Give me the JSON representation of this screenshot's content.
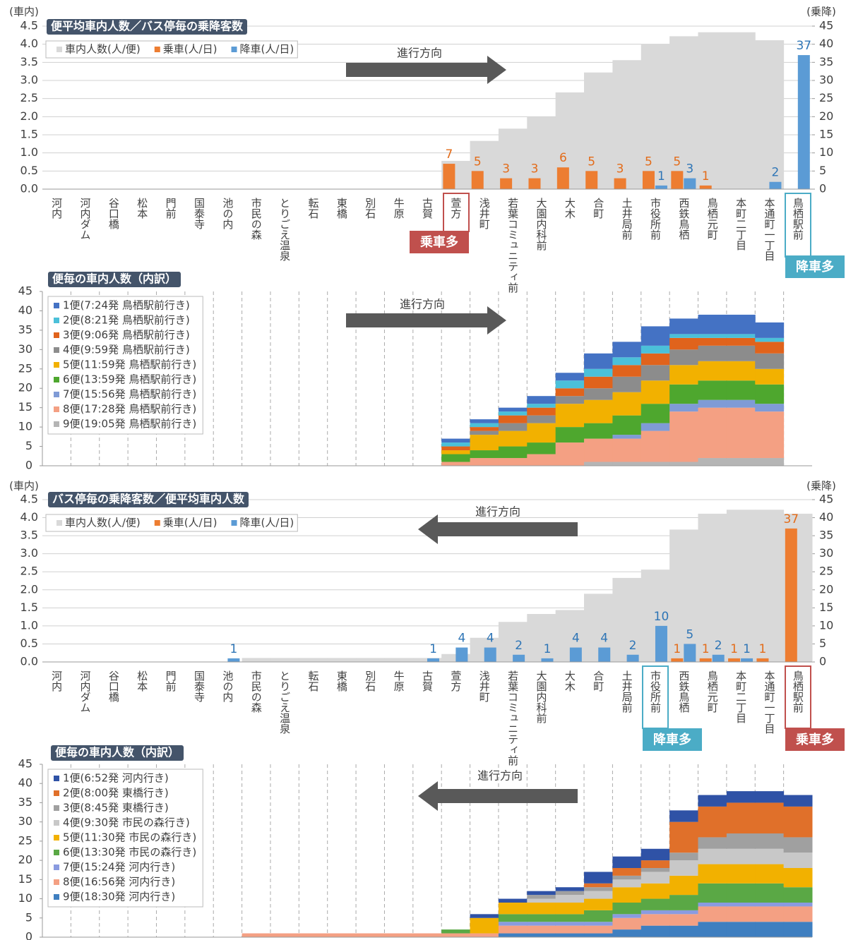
{
  "chart_data": [
    {
      "type": "combo",
      "title": "便平均車内人数／バス停毎の乗降客数",
      "y_label": "(車内)",
      "y2_label": "(乗降)",
      "direction_label": "進行方向",
      "annotations": [
        "乗車多",
        "降車多"
      ],
      "categories": [
        "河内",
        "河内ダム",
        "谷口橋",
        "松本",
        "門前",
        "国泰寺",
        "池の内",
        "市民の森",
        "とりごえ温泉",
        "転石",
        "東橋",
        "別石",
        "牛原",
        "古賀",
        "萱方",
        "浅井町",
        "若葉コミュニティ前",
        "大園内科前",
        "大木",
        "合町",
        "土井局前",
        "市役所前",
        "西鉄鳥栖",
        "鳥栖元町",
        "本町二丁目",
        "本通町一丁目",
        "鳥栖駅前"
      ],
      "ylim": [
        0,
        4.5
      ],
      "yticks": [
        {
          "value": 0,
          "label": "0.0"
        },
        0.5,
        {
          "value": 1,
          "label": "1.0"
        },
        1.5,
        {
          "value": 2,
          "label": "2.0"
        },
        2.5,
        {
          "value": 3,
          "label": "3.0"
        },
        3.5,
        {
          "value": 4,
          "label": "4.0"
        },
        4.5
      ],
      "y2lim": [
        0,
        45
      ],
      "y2ticks": [
        0,
        5,
        10,
        15,
        20,
        25,
        30,
        35,
        40,
        45
      ],
      "grid": true,
      "series": [
        {
          "name": "車内人数(人/便)",
          "color": "#d9d9d9",
          "values": [
            0,
            0,
            0,
            0,
            0,
            0,
            0,
            0,
            0,
            0,
            0,
            0,
            0,
            0,
            0.78,
            1.33,
            1.67,
            2.0,
            2.67,
            3.22,
            3.56,
            4.0,
            4.22,
            4.33,
            4.33,
            4.11,
            0
          ]
        },
        {
          "name": "乗車(人/日)",
          "color": "#ed7d31",
          "axis": "y2",
          "values": [
            null,
            null,
            null,
            null,
            null,
            null,
            null,
            null,
            null,
            null,
            null,
            null,
            null,
            null,
            7,
            5,
            3,
            3,
            6,
            5,
            3,
            5,
            5,
            1,
            null,
            null,
            null
          ]
        },
        {
          "name": "降車(人/日)",
          "color": "#5b9bd5",
          "axis": "y2",
          "values": [
            null,
            null,
            null,
            null,
            null,
            null,
            null,
            null,
            null,
            null,
            null,
            null,
            null,
            null,
            null,
            null,
            null,
            null,
            null,
            null,
            null,
            1,
            3,
            null,
            null,
            2,
            37
          ]
        }
      ]
    },
    {
      "type": "stacked_area",
      "title": "便毎の車内人数（内訳）",
      "direction_label": "進行方向",
      "ylim": [
        0,
        45
      ],
      "yticks": [
        0,
        5,
        10,
        15,
        20,
        25,
        30,
        35,
        40,
        45
      ],
      "series": [
        {
          "name": "1便(7:24発 鳥栖駅前行き)",
          "color": "#4472c4",
          "values": [
            0,
            0,
            0,
            0,
            0,
            0,
            0,
            0,
            0,
            0,
            0,
            0,
            0,
            0,
            1,
            1,
            1,
            2,
            2,
            4,
            4,
            5,
            4,
            5,
            5,
            4,
            0
          ]
        },
        {
          "name": "2便(8:21発 鳥栖駅前行き)",
          "color": "#4bc0d9",
          "values": [
            0,
            0,
            0,
            0,
            0,
            0,
            0,
            0,
            0,
            0,
            0,
            0,
            0,
            0,
            1,
            1,
            1,
            1,
            2,
            2,
            2,
            2,
            1,
            1,
            1,
            1,
            0
          ]
        },
        {
          "name": "3便(9:06発 鳥栖駅前行き)",
          "color": "#e0631c",
          "values": [
            0,
            0,
            0,
            0,
            0,
            0,
            0,
            0,
            0,
            0,
            0,
            0,
            0,
            0,
            1,
            1,
            2,
            2,
            2,
            3,
            3,
            3,
            3,
            2,
            2,
            3,
            0
          ]
        },
        {
          "name": "4便(9:59発 鳥栖駅前行き)",
          "color": "#8c8c8c",
          "values": [
            0,
            0,
            0,
            0,
            0,
            0,
            0,
            0,
            0,
            0,
            0,
            0,
            0,
            0,
            0,
            1,
            2,
            2,
            2,
            3,
            4,
            4,
            4,
            4,
            4,
            4,
            0
          ]
        },
        {
          "name": "5便(11:59発 鳥栖駅前行き)",
          "color": "#f2b100",
          "values": [
            0,
            0,
            0,
            0,
            0,
            0,
            0,
            0,
            0,
            0,
            0,
            0,
            0,
            0,
            1,
            4,
            4,
            5,
            6,
            6,
            6,
            6,
            5,
            5,
            5,
            4,
            0
          ]
        },
        {
          "name": "6便(13:59発 鳥栖駅前行き)",
          "color": "#4ea72e",
          "values": [
            0,
            0,
            0,
            0,
            0,
            0,
            0,
            0,
            0,
            0,
            0,
            0,
            0,
            0,
            2,
            2,
            3,
            3,
            4,
            4,
            5,
            5,
            5,
            5,
            5,
            5,
            0
          ]
        },
        {
          "name": "7便(15:56発 鳥栖駅前行き)",
          "color": "#7f9bd6",
          "values": [
            0,
            0,
            0,
            0,
            0,
            0,
            0,
            0,
            0,
            0,
            0,
            0,
            0,
            0,
            0,
            0,
            0,
            0,
            0,
            0,
            1,
            2,
            2,
            2,
            2,
            2,
            0
          ]
        },
        {
          "name": "8便(17:28発 鳥栖駅前行き)",
          "color": "#f4a083",
          "values": [
            0,
            0,
            0,
            0,
            0,
            0,
            0,
            0,
            0,
            0,
            0,
            0,
            0,
            0,
            1,
            2,
            2,
            3,
            6,
            6,
            6,
            8,
            13,
            13,
            13,
            12,
            0
          ]
        },
        {
          "name": "9便(19:05発 鳥栖駅前行き)",
          "color": "#b5b5b5",
          "values": [
            0,
            0,
            0,
            0,
            0,
            0,
            0,
            0,
            0,
            0,
            0,
            0,
            0,
            0,
            0,
            0,
            0,
            0,
            0,
            1,
            1,
            1,
            1,
            2,
            2,
            2,
            0
          ]
        }
      ]
    },
    {
      "type": "combo",
      "title": "バス停毎の乗降客数／便平均車内人数",
      "y_label": "(車内)",
      "y2_label": "(乗降)",
      "direction_label": "進行方向",
      "annotations": [
        "降車多",
        "乗車多"
      ],
      "categories": [
        "河内",
        "河内ダム",
        "谷口橋",
        "松本",
        "門前",
        "国泰寺",
        "池の内",
        "市民の森",
        "とりごえ温泉",
        "転石",
        "東橋",
        "別石",
        "牛原",
        "古賀",
        "萱方",
        "浅井町",
        "若葉コミュニティ前",
        "大園内科前",
        "大木",
        "合町",
        "土井局前",
        "市役所前",
        "西鉄鳥栖",
        "鳥栖元町",
        "本町二丁目",
        "本通町一丁目",
        "鳥栖駅前"
      ],
      "ylim": [
        0,
        4.5
      ],
      "yticks": [
        {
          "value": 0,
          "label": "0.0"
        },
        0.5,
        {
          "value": 1,
          "label": "1.0"
        },
        1.5,
        {
          "value": 2,
          "label": "2.0"
        },
        2.5,
        {
          "value": 3,
          "label": "3.0"
        },
        3.5,
        {
          "value": 4,
          "label": "4.0"
        },
        4.5
      ],
      "y2lim": [
        0,
        45
      ],
      "y2ticks": [
        0,
        5,
        10,
        15,
        20,
        25,
        30,
        35,
        40,
        45
      ],
      "grid": true,
      "series": [
        {
          "name": "車内人数(人/便)",
          "color": "#d9d9d9",
          "values": [
            0,
            0,
            0,
            0,
            0,
            0,
            0,
            0.11,
            0.11,
            0.11,
            0.11,
            0.11,
            0.11,
            0.11,
            0.22,
            0.67,
            1.11,
            1.33,
            1.44,
            1.89,
            2.33,
            2.56,
            3.67,
            4.11,
            4.22,
            4.22,
            4.11
          ]
        },
        {
          "name": "乗車(人/日)",
          "color": "#ed7d31",
          "axis": "y2",
          "values": [
            null,
            null,
            null,
            null,
            null,
            null,
            null,
            null,
            null,
            null,
            null,
            null,
            null,
            null,
            null,
            null,
            null,
            null,
            null,
            null,
            null,
            null,
            1,
            1,
            1,
            1,
            37
          ]
        },
        {
          "name": "降車(人/日)",
          "color": "#5b9bd5",
          "axis": "y2",
          "values": [
            null,
            null,
            null,
            null,
            null,
            null,
            1,
            null,
            null,
            null,
            null,
            null,
            null,
            1,
            4,
            4,
            2,
            1,
            4,
            4,
            2,
            10,
            5,
            2,
            1,
            null,
            null
          ]
        }
      ]
    },
    {
      "type": "stacked_area",
      "title": "便毎の車内人数（内訳）",
      "direction_label": "進行方向",
      "ylim": [
        0,
        45
      ],
      "yticks": [
        0,
        5,
        10,
        15,
        20,
        25,
        30,
        35,
        40,
        45
      ],
      "series": [
        {
          "name": "1便(6:52発 河内行き)",
          "color": "#2f52a6",
          "values": [
            0,
            0,
            0,
            0,
            0,
            0,
            0,
            0,
            0,
            0,
            0,
            0,
            0,
            0,
            0,
            1,
            1,
            1,
            1,
            3,
            3,
            3,
            3,
            3,
            3,
            3,
            3
          ]
        },
        {
          "name": "2便(8:00発 東橋行き)",
          "color": "#e0702a",
          "values": [
            0,
            0,
            0,
            0,
            0,
            0,
            0,
            0,
            0,
            0,
            0,
            0,
            0,
            0,
            0,
            0,
            0,
            0,
            0,
            1,
            2,
            2,
            8,
            8,
            8,
            8,
            8
          ]
        },
        {
          "name": "3便(8:45発 東橋行き)",
          "color": "#a0a0a0",
          "values": [
            0,
            0,
            0,
            0,
            0,
            0,
            0,
            0,
            0,
            0,
            0,
            0,
            0,
            0,
            0,
            0,
            0,
            1,
            1,
            1,
            1,
            1,
            2,
            3,
            4,
            4,
            4
          ]
        },
        {
          "name": "4便(9:30発 市民の森行き)",
          "color": "#c8c8c8",
          "values": [
            0,
            0,
            0,
            0,
            0,
            0,
            0,
            0,
            0,
            0,
            0,
            0,
            0,
            0,
            0,
            0,
            0,
            1,
            2,
            2,
            2,
            3,
            4,
            4,
            4,
            4,
            4
          ]
        },
        {
          "name": "5便(11:30発 市民の森行き)",
          "color": "#f2b100",
          "values": [
            0,
            0,
            0,
            0,
            0,
            0,
            0,
            0,
            0,
            0,
            0,
            0,
            0,
            0,
            0,
            4,
            3,
            3,
            3,
            3,
            4,
            4,
            5,
            5,
            5,
            5,
            5
          ]
        },
        {
          "name": "6便(13:30発 市民の森行き)",
          "color": "#5aa845",
          "values": [
            0,
            0,
            0,
            0,
            0,
            0,
            0,
            0,
            0,
            0,
            0,
            0,
            0,
            0,
            1,
            0,
            2,
            2,
            2,
            3,
            3,
            3,
            4,
            5,
            5,
            5,
            4
          ]
        },
        {
          "name": "7便(15:24発 河内行き)",
          "color": "#8a9be0",
          "values": [
            0,
            0,
            0,
            0,
            0,
            0,
            0,
            0,
            0,
            0,
            0,
            0,
            0,
            0,
            0,
            0,
            1,
            1,
            1,
            1,
            1,
            1,
            1,
            1,
            1,
            1,
            1
          ]
        },
        {
          "name": "8便(16:56発 河内行き)",
          "color": "#f4a083",
          "values": [
            0,
            0,
            0,
            0,
            0,
            0,
            0,
            1,
            1,
            1,
            1,
            1,
            1,
            1,
            1,
            1,
            2,
            2,
            2,
            2,
            3,
            3,
            3,
            4,
            4,
            4,
            4
          ]
        },
        {
          "name": "9便(18:30発 河内行き)",
          "color": "#3f7fc0",
          "values": [
            0,
            0,
            0,
            0,
            0,
            0,
            0,
            0,
            0,
            0,
            0,
            0,
            0,
            0,
            0,
            0,
            1,
            1,
            1,
            1,
            2,
            3,
            3,
            4,
            4,
            4,
            4
          ]
        }
      ]
    }
  ]
}
